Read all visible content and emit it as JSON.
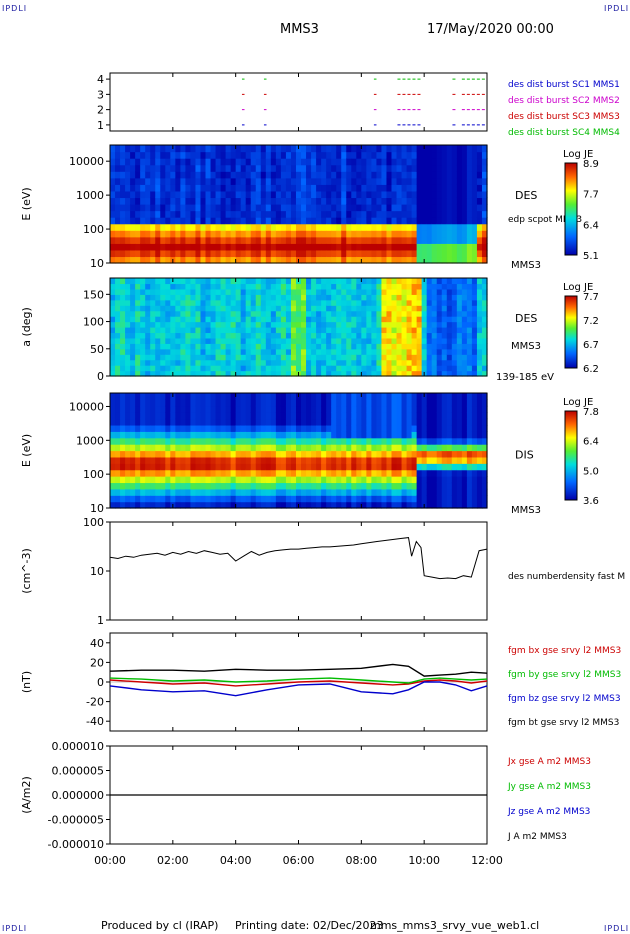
{
  "corner_label": "IPDLI",
  "header": {
    "spacecraft": "MMS3",
    "datetime": "17/May/2020 00:00"
  },
  "footer": {
    "produced_by": "Produced by cl (IRAP)",
    "printing_date": "Printing date: 02/Dec/2023",
    "script_name": "mms_mms3_srvy_vue_web1.cl"
  },
  "colors": {
    "red": "#cc0000",
    "green": "#00bb00",
    "blue": "#0000cc",
    "magenta": "#cc00cc",
    "black": "#000000"
  },
  "chart_data": [
    {
      "type": "scatter",
      "panel": "burst-availability",
      "ylim": [
        0.6,
        4.4
      ],
      "yticks": [
        1,
        2,
        3,
        4
      ],
      "legend": [
        {
          "label": "des dist burst SC1 MMS1",
          "color": "#0000cc"
        },
        {
          "label": "des dist burst SC2 MMS2",
          "color": "#cc00cc"
        },
        {
          "label": "des dist burst SC3 MMS3",
          "color": "#cc0000"
        },
        {
          "label": "des dist burst SC4 MMS4",
          "color": "#00bb00"
        }
      ],
      "segments_hours": [
        [
          4.2,
          4.25
        ],
        [
          4.9,
          4.95
        ],
        [
          8.4,
          8.45
        ],
        [
          9.15,
          9.9
        ],
        [
          10.9,
          11.0
        ],
        [
          11.2,
          11.9
        ]
      ]
    },
    {
      "type": "heatmap",
      "panel": "des-energy",
      "ylabel": "E (eV)",
      "yscale": "log",
      "ylim": [
        10,
        30000
      ],
      "yticks": [
        "10",
        "100",
        "1000",
        "10000"
      ],
      "side_label": "DES",
      "overlay_label": "edp scpot MMS3",
      "sc_label": "MMS3",
      "colorbar": {
        "title": "Log JE",
        "ticks": [
          "8.9",
          "7.7",
          "6.4",
          "5.1"
        ]
      }
    },
    {
      "type": "heatmap",
      "panel": "des-pitch",
      "ylabel": "a (deg)",
      "ylim": [
        0,
        180
      ],
      "yticks": [
        "0",
        "50",
        "100",
        "150"
      ],
      "side_label": "DES",
      "sc_label": "MMS3",
      "range_label": "139-185 eV",
      "colorbar": {
        "title": "Log JE",
        "ticks": [
          "7.7",
          "7.2",
          "6.7",
          "6.2"
        ]
      }
    },
    {
      "type": "heatmap",
      "panel": "dis-energy",
      "ylabel": "E (eV)",
      "yscale": "log",
      "ylim": [
        10,
        25000
      ],
      "yticks": [
        "10",
        "100",
        "1000",
        "10000"
      ],
      "side_label": "DIS",
      "sc_label": "MMS3",
      "colorbar": {
        "title": "Log JE",
        "ticks": [
          "7.8",
          "6.4",
          "5.0",
          "3.6"
        ]
      }
    },
    {
      "type": "line",
      "panel": "density",
      "ylabel": "(cm^-3)",
      "yscale": "log",
      "ylim": [
        1,
        100
      ],
      "yticks": [
        "1",
        "10",
        "100"
      ],
      "series": [
        {
          "name": "des numberdensity fast M",
          "color": "#000000",
          "x": [
            0,
            0.25,
            0.5,
            0.75,
            1,
            1.25,
            1.5,
            1.75,
            2,
            2.25,
            2.5,
            2.75,
            3,
            3.25,
            3.5,
            3.75,
            4,
            4.25,
            4.5,
            4.75,
            5,
            5.25,
            5.5,
            5.75,
            6,
            6.25,
            6.5,
            6.75,
            7,
            7.25,
            7.5,
            7.75,
            8,
            8.25,
            8.5,
            8.75,
            9,
            9.25,
            9.5,
            9.6,
            9.75,
            9.9,
            10.0,
            10.25,
            10.5,
            10.75,
            11,
            11.25,
            11.5,
            11.75,
            12
          ],
          "y": [
            19,
            18,
            20,
            19,
            21,
            22,
            23,
            21,
            24,
            22,
            25,
            23,
            26,
            24,
            22,
            23,
            16,
            20,
            25,
            21,
            24,
            26,
            27,
            28,
            28,
            29,
            30,
            31,
            31,
            32,
            33,
            34,
            36,
            38,
            40,
            42,
            44,
            46,
            48,
            20,
            40,
            30,
            8,
            7.5,
            7,
            7.2,
            7,
            8,
            7.5,
            26,
            28
          ]
        }
      ]
    },
    {
      "type": "line",
      "panel": "fgm",
      "ylabel": "(nT)",
      "ylim": [
        -50,
        50
      ],
      "yticks": [
        "-40",
        "-20",
        "0",
        "20",
        "40"
      ],
      "series": [
        {
          "name": "fgm bx gse srvy l2 MMS3",
          "color": "#cc0000",
          "x": [
            0,
            1,
            2,
            3,
            4,
            5,
            6,
            7,
            8,
            9,
            9.5,
            10,
            10.5,
            11,
            11.5,
            12
          ],
          "y": [
            2,
            0,
            -2,
            -1,
            -4,
            -2,
            0,
            1,
            -1,
            -3,
            -2,
            1,
            2,
            1,
            -1,
            1
          ]
        },
        {
          "name": "fgm by gse srvy l2 MMS3",
          "color": "#00bb00",
          "x": [
            0,
            1,
            2,
            3,
            4,
            5,
            6,
            7,
            8,
            9,
            9.5,
            10,
            10.5,
            11,
            11.5,
            12
          ],
          "y": [
            4,
            3,
            1,
            2,
            0,
            1,
            3,
            4,
            2,
            0,
            -1,
            3,
            4,
            3,
            2,
            3
          ]
        },
        {
          "name": "fgm bz gse srvy l2 MMS3",
          "color": "#0000cc",
          "x": [
            0,
            1,
            2,
            3,
            4,
            5,
            6,
            7,
            8,
            9,
            9.5,
            10,
            10.5,
            11,
            11.5,
            12
          ],
          "y": [
            -4,
            -8,
            -10,
            -9,
            -14,
            -8,
            -3,
            -2,
            -10,
            -12,
            -8,
            0,
            0,
            -3,
            -9,
            -4
          ]
        },
        {
          "name": "fgm bt gse srvy l2 MMS3",
          "color": "#000000",
          "x": [
            0,
            1,
            2,
            3,
            4,
            5,
            6,
            7,
            8,
            9,
            9.5,
            10,
            10.5,
            11,
            11.5,
            12
          ],
          "y": [
            11,
            12,
            12,
            11,
            13,
            12,
            12,
            13,
            14,
            18,
            16,
            6,
            7,
            8,
            10,
            9
          ]
        }
      ]
    },
    {
      "type": "line",
      "panel": "current",
      "ylabel": "(A/m2)",
      "ylim": [
        -1e-05,
        1e-05
      ],
      "yticks": [
        "-0.000010",
        "-0.000005",
        "0.000000",
        "0.000005",
        "0.000010"
      ],
      "series": [
        {
          "name": "Jx gse A m2 MMS3",
          "color": "#cc0000"
        },
        {
          "name": "Jy gse A m2 MMS3",
          "color": "#00bb00"
        },
        {
          "name": "Jz gse A m2 MMS3",
          "color": "#0000cc"
        },
        {
          "name": "J A m2 MMS3",
          "color": "#000000"
        }
      ],
      "x": [
        0,
        12
      ],
      "y": [
        0,
        0
      ]
    }
  ],
  "xaxis": {
    "range": [
      0,
      12
    ],
    "ticks": [
      "00:00",
      "02:00",
      "04:00",
      "06:00",
      "08:00",
      "10:00",
      "12:00"
    ]
  }
}
